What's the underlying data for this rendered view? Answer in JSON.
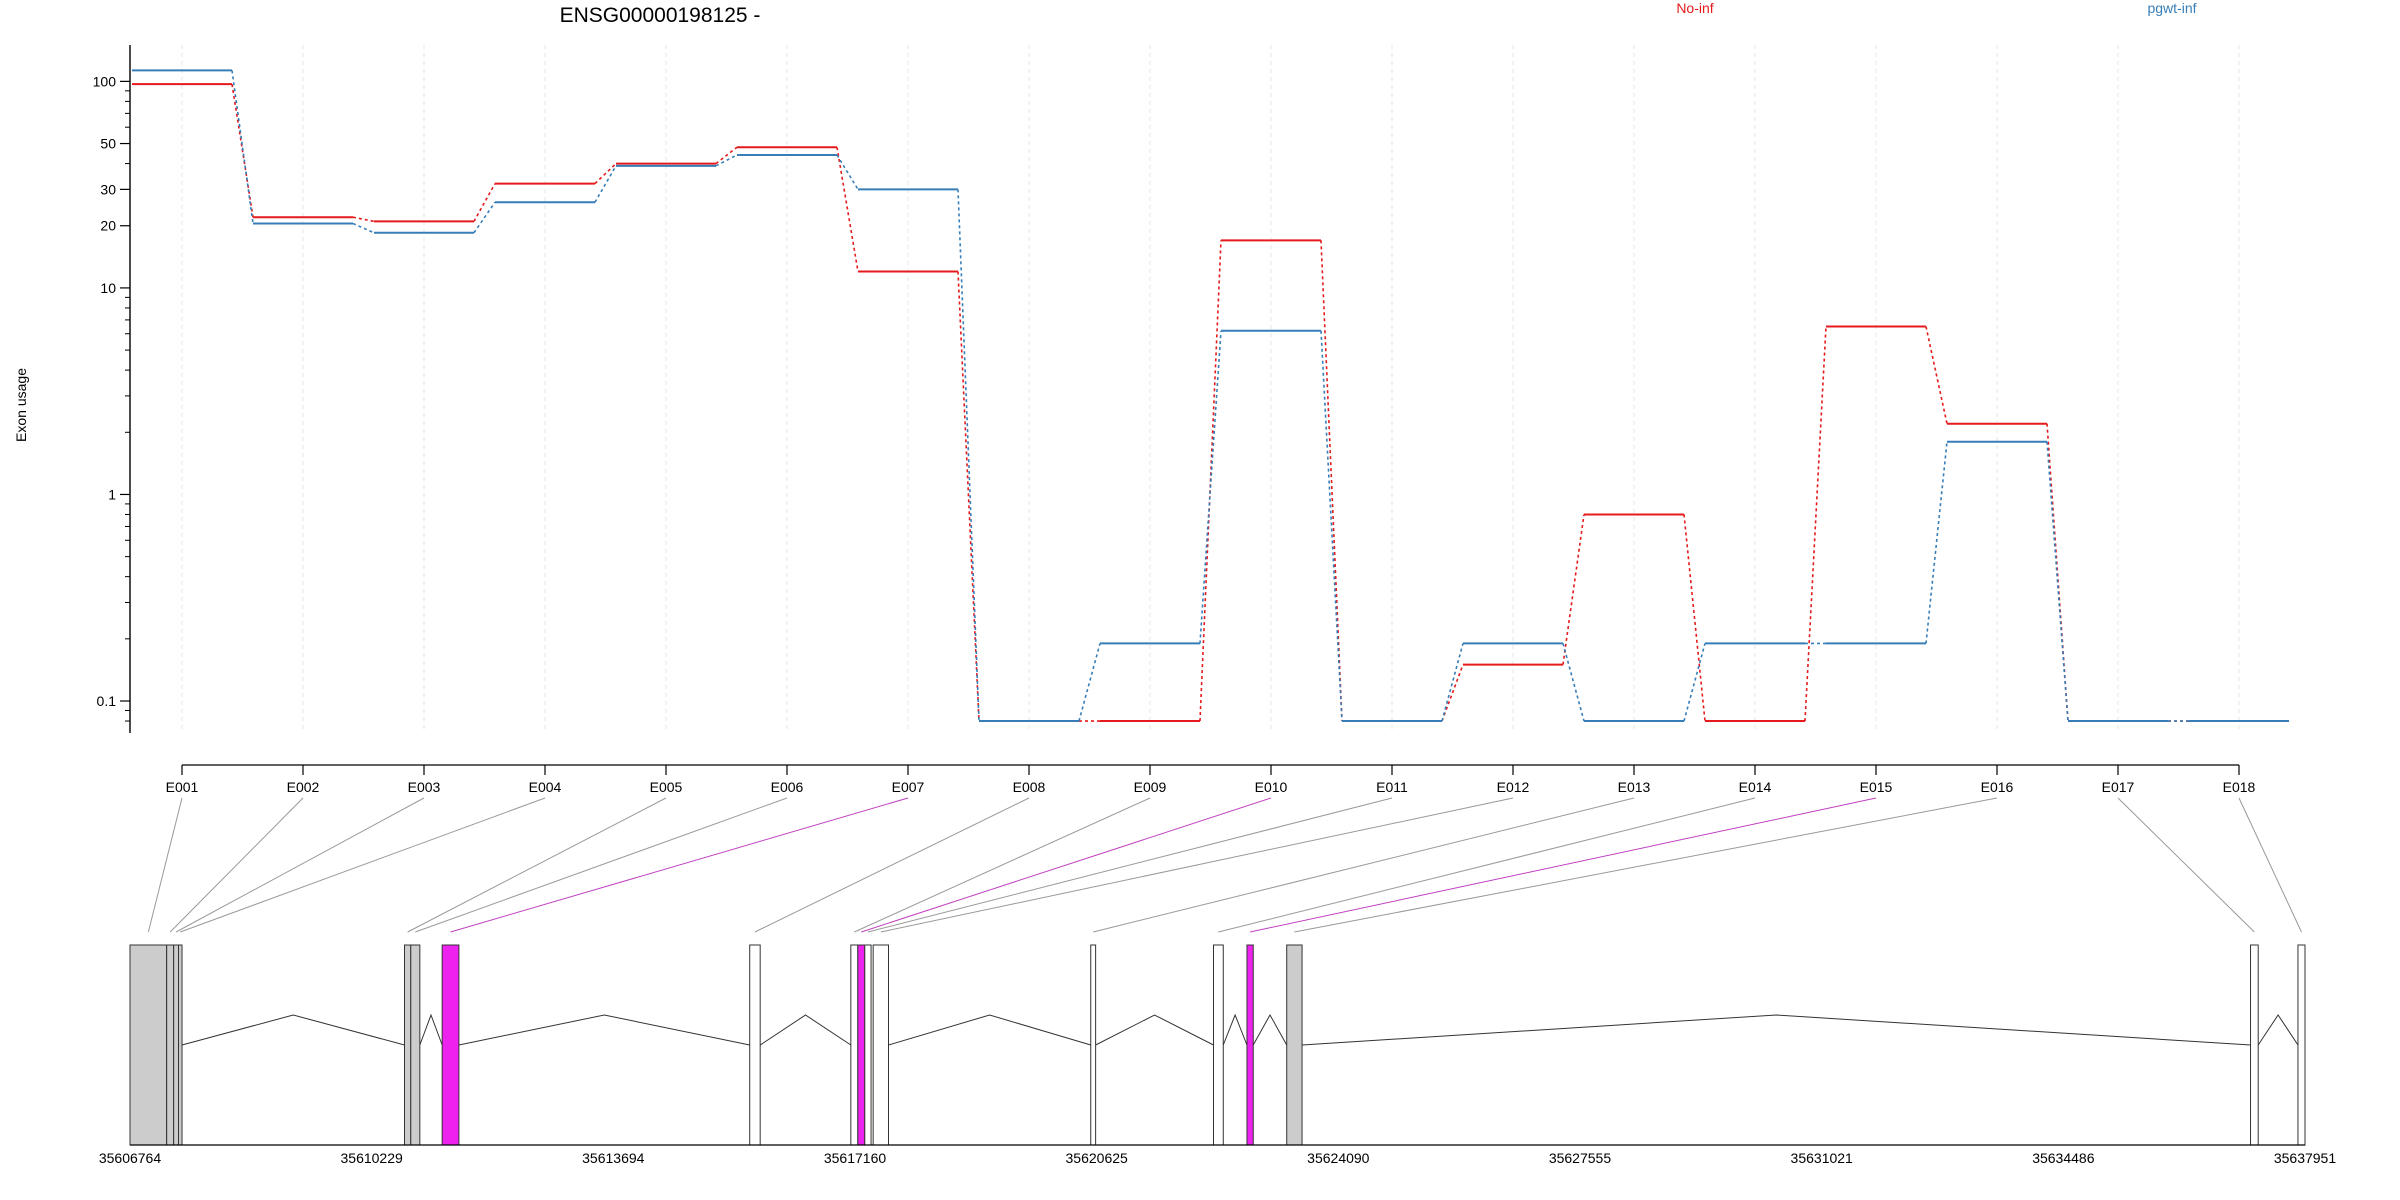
{
  "chart_data": {
    "type": "line",
    "title": "ENSG00000198125 -",
    "ylabel": "Exon usage",
    "yscale": "log",
    "ylim": [
      0.07,
      150
    ],
    "yticks": [
      {
        "value": 0.1,
        "label": "0.1"
      },
      {
        "value": 1,
        "label": "1"
      },
      {
        "value": 10,
        "label": "10"
      },
      {
        "value": 20,
        "label": "20"
      },
      {
        "value": 30,
        "label": "30"
      },
      {
        "value": 50,
        "label": "50"
      },
      {
        "value": 100,
        "label": "100"
      }
    ],
    "categories": [
      "E001",
      "E002",
      "E003",
      "E004",
      "E005",
      "E006",
      "E007",
      "E008",
      "E009",
      "E010",
      "E011",
      "E012",
      "E013",
      "E014",
      "E015",
      "E016",
      "E017",
      "E018"
    ],
    "series": [
      {
        "name": "No-inf",
        "color": "#e41a1c",
        "values": [
          97,
          22,
          21,
          32,
          40,
          48,
          12,
          0.08,
          0.08,
          17,
          0.08,
          0.15,
          0.8,
          0.08,
          6.5,
          2.2,
          0.08,
          0.08
        ]
      },
      {
        "name": "pgwt-inf",
        "color": "#377eb8",
        "values": [
          113,
          20.5,
          18.5,
          26,
          39,
          44,
          30,
          0.08,
          0.19,
          6.2,
          0.08,
          0.19,
          0.08,
          0.19,
          0.19,
          1.8,
          0.08,
          0.08
        ]
      }
    ],
    "legend_placement": "top",
    "grid": "vertical-dashed",
    "gene_model": {
      "xlim": [
        35606764,
        35637951
      ],
      "axis_ticks": [
        "35606764",
        "35610229",
        "35613694",
        "35617160",
        "35620625",
        "35624090",
        "35627555",
        "35631021",
        "35634486",
        "35637951"
      ],
      "exons": [
        {
          "id": "E001",
          "start": 35606764,
          "end": 35607290,
          "fill": "gray"
        },
        {
          "id": "E002",
          "start": 35607290,
          "end": 35607390,
          "fill": "gray"
        },
        {
          "id": "E003",
          "start": 35607390,
          "end": 35607460,
          "fill": "gray"
        },
        {
          "id": "E004",
          "start": 35607460,
          "end": 35607510,
          "fill": "gray"
        },
        {
          "id": "E005",
          "start": 35610700,
          "end": 35610790,
          "fill": "gray"
        },
        {
          "id": "E006",
          "start": 35610790,
          "end": 35610920,
          "fill": "gray"
        },
        {
          "id": "E007",
          "start": 35611240,
          "end": 35611480,
          "fill": "magenta"
        },
        {
          "id": "E008",
          "start": 35615650,
          "end": 35615800,
          "fill": "white"
        },
        {
          "id": "E009",
          "start": 35617100,
          "end": 35617200,
          "fill": "white"
        },
        {
          "id": "E010",
          "start": 35617200,
          "end": 35617300,
          "fill": "magenta"
        },
        {
          "id": "E011",
          "start": 35617300,
          "end": 35617390,
          "fill": "white"
        },
        {
          "id": "E012",
          "start": 35617420,
          "end": 35617640,
          "fill": "white"
        },
        {
          "id": "E013",
          "start": 35620540,
          "end": 35620610,
          "fill": "white"
        },
        {
          "id": "E014",
          "start": 35622300,
          "end": 35622440,
          "fill": "white"
        },
        {
          "id": "E015",
          "start": 35622780,
          "end": 35622870,
          "fill": "magenta"
        },
        {
          "id": "E016",
          "start": 35623350,
          "end": 35623570,
          "fill": "gray"
        },
        {
          "id": "E017",
          "start": 35637170,
          "end": 35637280,
          "fill": "white"
        },
        {
          "id": "E018",
          "start": 35637850,
          "end": 35637951,
          "fill": "white"
        }
      ]
    }
  }
}
